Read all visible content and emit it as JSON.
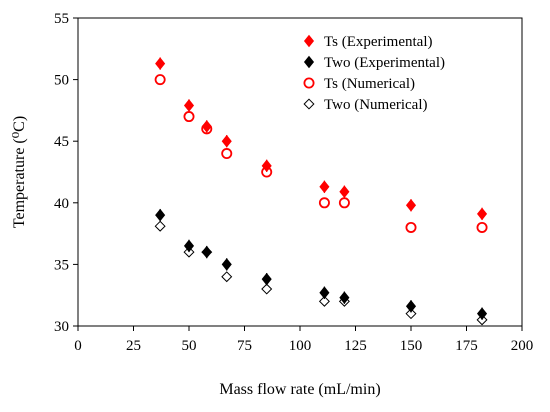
{
  "chart_data": {
    "type": "scatter",
    "xlabel": "Mass flow rate (mL/min)",
    "ylabel": "Temperature (⁰C)",
    "xlim": [
      0,
      200
    ],
    "ylim": [
      30,
      55
    ],
    "x_ticks": [
      0,
      25,
      50,
      75,
      100,
      125,
      150,
      175,
      200
    ],
    "y_ticks": [
      30,
      35,
      40,
      45,
      50,
      55
    ],
    "grid": false,
    "legend_position": "top-right",
    "series": [
      {
        "name": "Ts (Experimental)",
        "marker": "filled-diamond",
        "color": "#ff0000",
        "error_bars": true,
        "x": [
          37,
          50,
          58,
          67,
          85,
          111,
          120,
          150,
          182
        ],
        "y": [
          51.3,
          47.9,
          46.2,
          45.0,
          43.0,
          41.3,
          40.9,
          39.8,
          39.1
        ],
        "error": [
          0.5,
          0.5,
          0.5,
          0.5,
          0.5,
          0.5,
          0.5,
          0.5,
          0.5
        ]
      },
      {
        "name": "Two (Experimental)",
        "marker": "filled-diamond",
        "color": "#000000",
        "error_bars": true,
        "x": [
          37,
          50,
          58,
          67,
          85,
          111,
          120,
          150,
          182
        ],
        "y": [
          39.0,
          36.5,
          36.0,
          35.0,
          33.8,
          32.7,
          32.3,
          31.6,
          31.0
        ],
        "error": [
          0.5,
          0.5,
          0.5,
          0.5,
          0.5,
          0.5,
          0.5,
          0.5,
          0.5
        ]
      },
      {
        "name": "Ts (Numerical)",
        "marker": "open-circle",
        "color": "#ff0000",
        "error_bars": false,
        "x": [
          37,
          50,
          58,
          67,
          85,
          111,
          120,
          150,
          182
        ],
        "y": [
          50.0,
          47.0,
          46.0,
          44.0,
          42.5,
          40.0,
          40.0,
          38.0,
          38.0
        ]
      },
      {
        "name": "Two (Numerical)",
        "marker": "open-diamond",
        "color": "#000000",
        "error_bars": false,
        "x": [
          37,
          50,
          58,
          67,
          85,
          111,
          120,
          150,
          182
        ],
        "y": [
          38.1,
          36.0,
          36.0,
          34.0,
          33.0,
          32.0,
          32.0,
          31.0,
          30.5
        ]
      }
    ]
  }
}
